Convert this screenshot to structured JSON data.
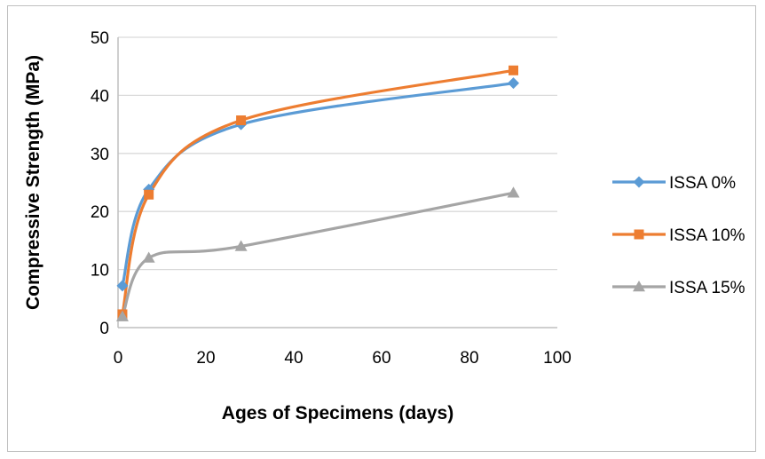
{
  "chart_data": {
    "type": "line",
    "title": "",
    "xlabel": "Ages of Specimens (days)",
    "ylabel": "Compressive Strength (MPa)",
    "xlim": [
      0,
      100
    ],
    "ylim": [
      0,
      50
    ],
    "x_ticks": [
      0,
      20,
      40,
      60,
      80,
      100
    ],
    "y_ticks": [
      0,
      10,
      20,
      30,
      40,
      50
    ],
    "grid": "horizontal",
    "legend_position": "right",
    "smoothed": true,
    "series": [
      {
        "name": "ISSA 0%",
        "color": "#5B9BD5",
        "marker": "diamond",
        "points": [
          {
            "x": 1,
            "y": 7.2
          },
          {
            "x": 7,
            "y": 23.8
          },
          {
            "x": 28,
            "y": 35
          },
          {
            "x": 90,
            "y": 42.1
          }
        ]
      },
      {
        "name": "ISSA 10%",
        "color": "#ED7D31",
        "marker": "square",
        "points": [
          {
            "x": 1,
            "y": 2.3
          },
          {
            "x": 7,
            "y": 22.9
          },
          {
            "x": 28,
            "y": 35.7
          },
          {
            "x": 90,
            "y": 44.3
          }
        ]
      },
      {
        "name": "ISSA 15%",
        "color": "#A5A5A5",
        "marker": "triangle",
        "points": [
          {
            "x": 1,
            "y": 1.9
          },
          {
            "x": 7,
            "y": 12
          },
          {
            "x": 28,
            "y": 14
          },
          {
            "x": 90,
            "y": 23.2
          }
        ]
      }
    ]
  }
}
